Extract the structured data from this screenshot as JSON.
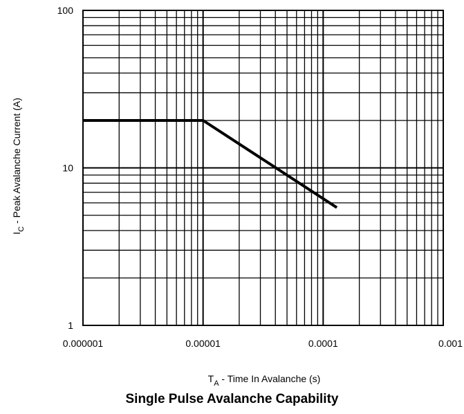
{
  "caption": "Single Pulse Avalanche Capability",
  "chart_data": {
    "type": "line",
    "x_scale": "log",
    "y_scale": "log",
    "xlim": [
      1e-06,
      0.001
    ],
    "ylim": [
      1,
      100
    ],
    "grid": true,
    "x_ticks": [
      "0.000001",
      "0.00001",
      "0.0001",
      "0.001"
    ],
    "y_ticks": [
      "1",
      "10",
      "100"
    ],
    "xlabel": {
      "main": "T",
      "sub": "A",
      "rest": " - Time In Avalanche (s)"
    },
    "ylabel": {
      "main": "I",
      "sub": "C",
      "rest": " - Peak Avalanche Current (A)"
    },
    "series": [
      {
        "x": [
          1e-06,
          1e-05,
          0.00013
        ],
        "y": [
          20,
          20,
          5.6
        ],
        "color": "#000000"
      }
    ]
  }
}
